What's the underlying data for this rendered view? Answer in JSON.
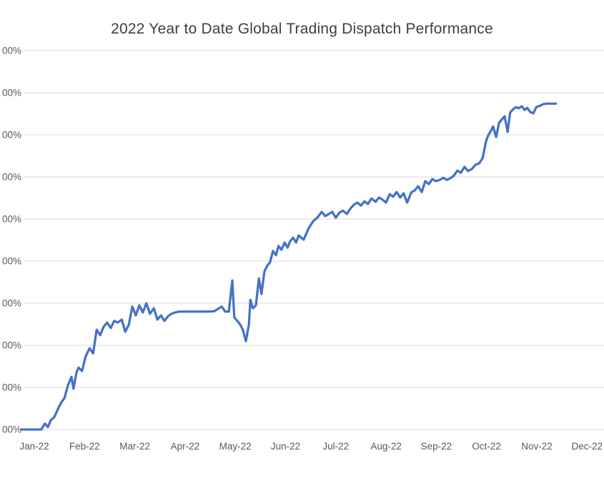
{
  "chart_data": {
    "type": "line",
    "title": "2022 Year to Date Global Trading Dispatch Performance",
    "xlabel": "",
    "ylabel": "",
    "grid": "horizontal",
    "legend": "none",
    "line_color": "#4472C4",
    "gridline_color": "#d9d9d9",
    "axis_label_color": "#595959",
    "title_color": "#404040",
    "ylim": [
      0,
      900
    ],
    "xlim_months": [
      -0.3,
      11.35
    ],
    "y_axis_labels_clipped": true,
    "x_last_label_clipped": true,
    "x_ticks": [
      "Jan-22",
      "Feb-22",
      "Mar-22",
      "Apr-22",
      "May-22",
      "Jun-22",
      "Jul-22",
      "Aug-22",
      "Sep-22",
      "Oct-22",
      "Nov-22",
      "Dec-22"
    ],
    "y_ticks": [
      {
        "value": 0,
        "label": "00%"
      },
      {
        "value": 100,
        "label": "00%"
      },
      {
        "value": 200,
        "label": "00%"
      },
      {
        "value": 300,
        "label": "00%"
      },
      {
        "value": 400,
        "label": "00%"
      },
      {
        "value": 500,
        "label": "00%"
      },
      {
        "value": 600,
        "label": "00%"
      },
      {
        "value": 700,
        "label": "00%"
      },
      {
        "value": 800,
        "label": "00%"
      },
      {
        "value": 900,
        "label": "00%"
      }
    ],
    "series": [
      {
        "name": "YTD Global Trading Dispatch Performance",
        "points": [
          [
            -0.26,
            0
          ],
          [
            0.0,
            0
          ],
          [
            0.14,
            0
          ],
          [
            0.21,
            14
          ],
          [
            0.27,
            6
          ],
          [
            0.33,
            22
          ],
          [
            0.4,
            30
          ],
          [
            0.46,
            46
          ],
          [
            0.53,
            63
          ],
          [
            0.6,
            75
          ],
          [
            0.67,
            105
          ],
          [
            0.74,
            125
          ],
          [
            0.78,
            97
          ],
          [
            0.84,
            136
          ],
          [
            0.88,
            147
          ],
          [
            0.95,
            139
          ],
          [
            1.02,
            173
          ],
          [
            1.1,
            193
          ],
          [
            1.17,
            181
          ],
          [
            1.24,
            237
          ],
          [
            1.31,
            224
          ],
          [
            1.38,
            244
          ],
          [
            1.45,
            254
          ],
          [
            1.52,
            241
          ],
          [
            1.59,
            258
          ],
          [
            1.66,
            254
          ],
          [
            1.74,
            261
          ],
          [
            1.81,
            232
          ],
          [
            1.88,
            249
          ],
          [
            1.95,
            292
          ],
          [
            2.02,
            271
          ],
          [
            2.09,
            295
          ],
          [
            2.16,
            278
          ],
          [
            2.23,
            300
          ],
          [
            2.3,
            275
          ],
          [
            2.38,
            288
          ],
          [
            2.45,
            261
          ],
          [
            2.52,
            271
          ],
          [
            2.59,
            258
          ],
          [
            2.66,
            269
          ],
          [
            2.73,
            275
          ],
          [
            2.8,
            278
          ],
          [
            2.87,
            280
          ],
          [
            3.02,
            280
          ],
          [
            3.16,
            280
          ],
          [
            3.3,
            280
          ],
          [
            3.44,
            280
          ],
          [
            3.58,
            281
          ],
          [
            3.73,
            292
          ],
          [
            3.8,
            280
          ],
          [
            3.87,
            280
          ],
          [
            3.94,
            354
          ],
          [
            3.98,
            266
          ],
          [
            4.04,
            258
          ],
          [
            4.1,
            249
          ],
          [
            4.15,
            237
          ],
          [
            4.21,
            210
          ],
          [
            4.27,
            249
          ],
          [
            4.3,
            308
          ],
          [
            4.35,
            288
          ],
          [
            4.41,
            295
          ],
          [
            4.47,
            359
          ],
          [
            4.52,
            322
          ],
          [
            4.58,
            376
          ],
          [
            4.64,
            390
          ],
          [
            4.69,
            397
          ],
          [
            4.75,
            424
          ],
          [
            4.81,
            414
          ],
          [
            4.86,
            436
          ],
          [
            4.92,
            427
          ],
          [
            4.98,
            444
          ],
          [
            5.04,
            432
          ],
          [
            5.09,
            447
          ],
          [
            5.15,
            456
          ],
          [
            5.21,
            444
          ],
          [
            5.26,
            461
          ],
          [
            5.36,
            451
          ],
          [
            5.46,
            478
          ],
          [
            5.55,
            495
          ],
          [
            5.63,
            503
          ],
          [
            5.72,
            517
          ],
          [
            5.79,
            507
          ],
          [
            5.86,
            512
          ],
          [
            5.93,
            517
          ],
          [
            6.0,
            503
          ],
          [
            6.07,
            515
          ],
          [
            6.14,
            520
          ],
          [
            6.22,
            512
          ],
          [
            6.29,
            525
          ],
          [
            6.36,
            534
          ],
          [
            6.43,
            539
          ],
          [
            6.5,
            532
          ],
          [
            6.57,
            542
          ],
          [
            6.64,
            536
          ],
          [
            6.71,
            549
          ],
          [
            6.79,
            541
          ],
          [
            6.86,
            551
          ],
          [
            6.93,
            546
          ],
          [
            7.0,
            539
          ],
          [
            7.07,
            559
          ],
          [
            7.14,
            553
          ],
          [
            7.21,
            564
          ],
          [
            7.28,
            551
          ],
          [
            7.35,
            561
          ],
          [
            7.42,
            539
          ],
          [
            7.5,
            563
          ],
          [
            7.57,
            568
          ],
          [
            7.64,
            578
          ],
          [
            7.71,
            564
          ],
          [
            7.78,
            590
          ],
          [
            7.85,
            583
          ],
          [
            7.92,
            595
          ],
          [
            7.99,
            590
          ],
          [
            8.07,
            593
          ],
          [
            8.14,
            598
          ],
          [
            8.21,
            593
          ],
          [
            8.28,
            597
          ],
          [
            8.35,
            603
          ],
          [
            8.42,
            615
          ],
          [
            8.49,
            610
          ],
          [
            8.56,
            624
          ],
          [
            8.63,
            614
          ],
          [
            8.71,
            619
          ],
          [
            8.78,
            629
          ],
          [
            8.85,
            632
          ],
          [
            8.92,
            644
          ],
          [
            8.99,
            685
          ],
          [
            9.03,
            698
          ],
          [
            9.09,
            710
          ],
          [
            9.13,
            720
          ],
          [
            9.19,
            695
          ],
          [
            9.25,
            729
          ],
          [
            9.3,
            736
          ],
          [
            9.36,
            744
          ],
          [
            9.42,
            707
          ],
          [
            9.47,
            753
          ],
          [
            9.53,
            761
          ],
          [
            9.59,
            766
          ],
          [
            9.64,
            763
          ],
          [
            9.7,
            768
          ],
          [
            9.76,
            759
          ],
          [
            9.81,
            764
          ],
          [
            9.87,
            754
          ],
          [
            9.93,
            751
          ],
          [
            9.99,
            766
          ],
          [
            10.06,
            769
          ],
          [
            10.13,
            773
          ],
          [
            10.2,
            774
          ],
          [
            10.3,
            774
          ],
          [
            10.38,
            774
          ]
        ]
      }
    ]
  }
}
